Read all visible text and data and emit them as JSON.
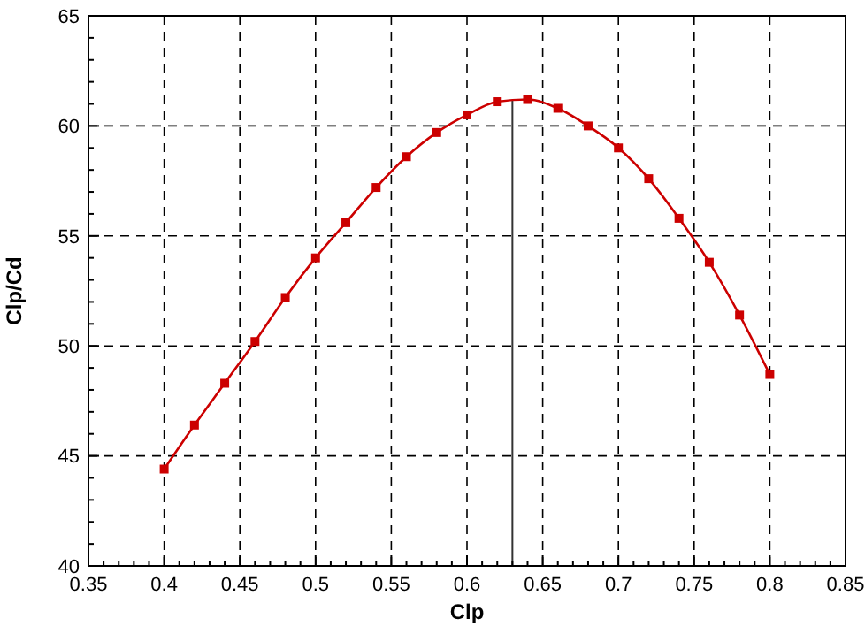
{
  "chart_data": {
    "type": "line",
    "xlabel": "Clp",
    "ylabel": "Clp/Cd",
    "x": [
      0.4,
      0.42,
      0.44,
      0.46,
      0.48,
      0.5,
      0.52,
      0.54,
      0.56,
      0.58,
      0.6,
      0.62,
      0.64,
      0.66,
      0.68,
      0.7,
      0.72,
      0.74,
      0.76,
      0.78,
      0.8
    ],
    "series": [
      {
        "color": "#cc0000",
        "values": [
          44.4,
          46.4,
          48.3,
          50.2,
          52.2,
          54.0,
          55.6,
          57.2,
          58.6,
          59.7,
          60.5,
          61.1,
          61.2,
          60.8,
          60.0,
          59.0,
          57.6,
          55.8,
          53.8,
          51.4,
          48.7
        ]
      }
    ],
    "xlim": [
      0.35,
      0.85
    ],
    "xticks": [
      0.35,
      {
        "value": 0.4,
        "label": "0.4"
      },
      0.45,
      {
        "value": 0.5,
        "label": "0.5"
      },
      0.55,
      {
        "value": 0.6,
        "label": "0.6"
      },
      0.65,
      {
        "value": 0.7,
        "label": "0.7"
      },
      0.75,
      {
        "value": 0.8,
        "label": "0.8"
      },
      0.85
    ],
    "ylim": [
      40,
      65
    ],
    "yticks": [
      40,
      45,
      50,
      55,
      60,
      65
    ],
    "grid": true,
    "marker": "square",
    "line_style": "solid",
    "ref_lines": [
      {
        "axis": "x",
        "value": 0.63,
        "color": "#333333"
      }
    ]
  }
}
